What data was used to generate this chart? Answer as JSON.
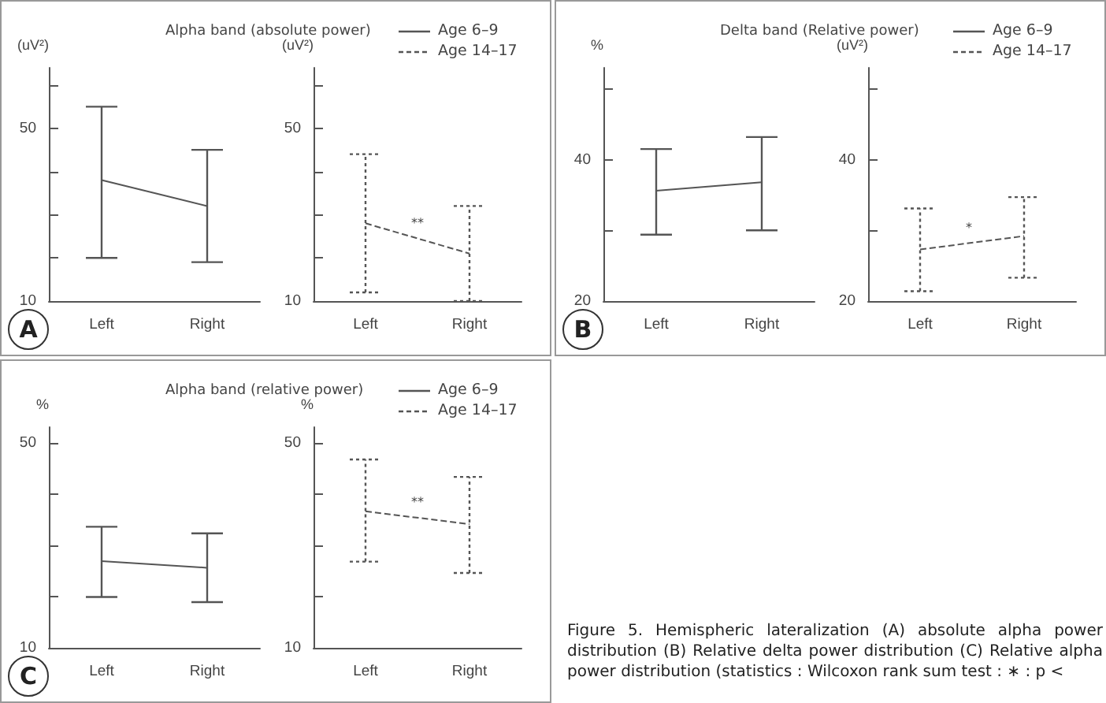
{
  "chart_data": [
    {
      "type": "line",
      "title": "Alpha band (absolute power)",
      "ylabel": "(uV²)",
      "categories": [
        "Left",
        "Right"
      ],
      "ylim": [
        10,
        64
      ],
      "yticks": [
        10,
        {
          "value": 20,
          "label": null
        },
        {
          "value": 30,
          "label": null
        },
        {
          "value": 40,
          "label": null
        },
        50,
        {
          "value": 60,
          "label": null
        }
      ],
      "grid": false,
      "marker": "none",
      "legend": "top right",
      "annotations": [
        "A"
      ],
      "series": [
        {
          "name": "Age 6–9",
          "color": "#555555",
          "line_style": "solid",
          "values": [
            38,
            32
          ],
          "errors": [
            [
              20,
              55
            ],
            [
              19,
              45
            ]
          ]
        }
      ]
    },
    {
      "type": "line",
      "ylabel": "(uV²)",
      "categories": [
        "Left",
        "Right"
      ],
      "ylim": [
        10,
        64
      ],
      "yticks": [
        10,
        {
          "value": 20,
          "label": null
        },
        {
          "value": 30,
          "label": null
        },
        {
          "value": 40,
          "label": null
        },
        50,
        {
          "value": 60,
          "label": null
        }
      ],
      "grid": false,
      "marker": "none",
      "legend": "top right",
      "annotations": [
        "**"
      ],
      "series": [
        {
          "name": "Age 14–17",
          "color": "#555555",
          "line_style": "dashed",
          "values": [
            28,
            21
          ],
          "errors": [
            [
              12,
              44
            ],
            [
              10,
              32
            ]
          ]
        }
      ]
    },
    {
      "type": "line",
      "title": "Delta band (Relative power)",
      "ylabel": "%",
      "categories": [
        "Left",
        "Right"
      ],
      "ylim": [
        20,
        53
      ],
      "yticks": [
        20,
        {
          "value": 30,
          "label": null
        },
        40,
        {
          "value": 50,
          "label": null
        }
      ],
      "grid": false,
      "marker": "none",
      "legend": "top right",
      "annotations": [
        "B"
      ],
      "series": [
        {
          "name": "Age 6–9",
          "color": "#555555",
          "line_style": "solid",
          "values": [
            35.6,
            36.8
          ],
          "errors": [
            [
              29.4,
              41.5
            ],
            [
              30,
              43.2
            ]
          ]
        }
      ]
    },
    {
      "type": "line",
      "ylabel": "(uV²)",
      "categories": [
        "Left",
        "Right"
      ],
      "ylim": [
        20,
        53
      ],
      "yticks": [
        20,
        {
          "value": 30,
          "label": null
        },
        40,
        {
          "value": 50,
          "label": null
        }
      ],
      "grid": false,
      "marker": "none",
      "legend": "top right",
      "annotations": [
        "*"
      ],
      "series": [
        {
          "name": "Age 14–17",
          "color": "#555555",
          "line_style": "dashed",
          "values": [
            27.3,
            29.2
          ],
          "errors": [
            [
              21.4,
              33.1
            ],
            [
              23.3,
              34.7
            ]
          ]
        }
      ]
    },
    {
      "type": "line",
      "title": "Alpha band (relative power)",
      "ylabel": "%",
      "categories": [
        "Left",
        "Right"
      ],
      "ylim": [
        10,
        53
      ],
      "yticks": [
        10,
        {
          "value": 20,
          "label": null
        },
        {
          "value": 30,
          "label": null
        },
        {
          "value": 40,
          "label": null
        },
        50
      ],
      "grid": false,
      "marker": "none",
      "legend": "top right",
      "annotations": [
        "C"
      ],
      "series": [
        {
          "name": "Age 6–9",
          "color": "#555555",
          "line_style": "solid",
          "values": [
            26.9,
            25.6
          ],
          "errors": [
            [
              19.9,
              33.6
            ],
            [
              18.9,
              32.3
            ]
          ]
        }
      ]
    },
    {
      "type": "line",
      "ylabel": "%",
      "categories": [
        "Left",
        "Right"
      ],
      "ylim": [
        10,
        53
      ],
      "yticks": [
        10,
        {
          "value": 20,
          "label": null
        },
        {
          "value": 30,
          "label": null
        },
        {
          "value": 40,
          "label": null
        },
        50
      ],
      "grid": false,
      "marker": "none",
      "legend": "top right",
      "annotations": [
        "**",
        "Figure 5. Hemispheric lateralization (A) absolute alpha power distribution (B) Relative delta power distribution (C) Relative alpha power distribution (statistics : Wilcoxon rank sum test : ∗ : p <"
      ],
      "series": [
        {
          "name": "Age 14–17",
          "color": "#555555",
          "line_style": "dashed",
          "values": [
            36.6,
            34.1
          ],
          "errors": [
            [
              26.8,
              46.7
            ],
            [
              24.6,
              43.3
            ]
          ]
        }
      ]
    }
  ]
}
